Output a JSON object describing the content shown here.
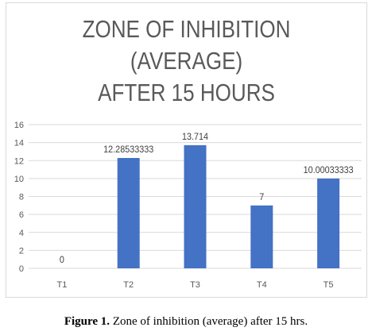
{
  "chart_data": {
    "type": "bar",
    "title_lines": [
      "ZONE OF INHIBITION",
      "(AVERAGE)",
      "AFTER 15 HOURS"
    ],
    "categories": [
      "T1",
      "T2",
      "T3",
      "T4",
      "T5"
    ],
    "values": [
      0,
      12.28533333,
      13.714,
      7,
      10.00033333
    ],
    "data_labels": [
      "0",
      "12.28533333",
      "13.714",
      "7",
      "10.00033333"
    ],
    "ylim": [
      0,
      16
    ],
    "yticks": [
      0,
      2,
      4,
      6,
      8,
      10,
      12,
      14,
      16
    ],
    "grid": true,
    "bar_color": "#4472c4",
    "gridline_color": "#d9d9d9"
  },
  "caption": {
    "label": "Figure 1.",
    "text": " Zone of inhibition (average) after 15 hrs."
  }
}
